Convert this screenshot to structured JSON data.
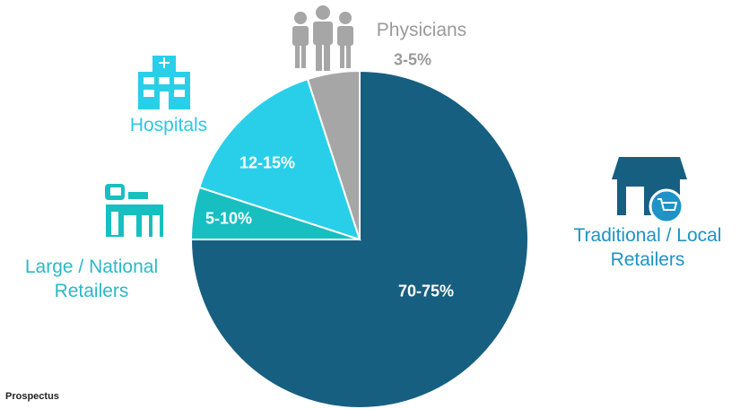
{
  "chart_data": {
    "type": "pie",
    "categories": [
      "Traditional / Local Retailers",
      "Large / National Retailers",
      "Hospitals",
      "Physicians"
    ],
    "values": [
      75,
      5,
      15,
      5
    ],
    "value_labels": [
      "70-75%",
      "5-10%",
      "12-15%",
      "3-5%"
    ],
    "colors": [
      "#175f80",
      "#17bfc0",
      "#29cfe8",
      "#a6a6a6"
    ],
    "label_colors": [
      "#1d93c6",
      "#2bb9c9",
      "#2bc8e6",
      "#9a9a9a"
    ],
    "source": "Prospectus"
  }
}
